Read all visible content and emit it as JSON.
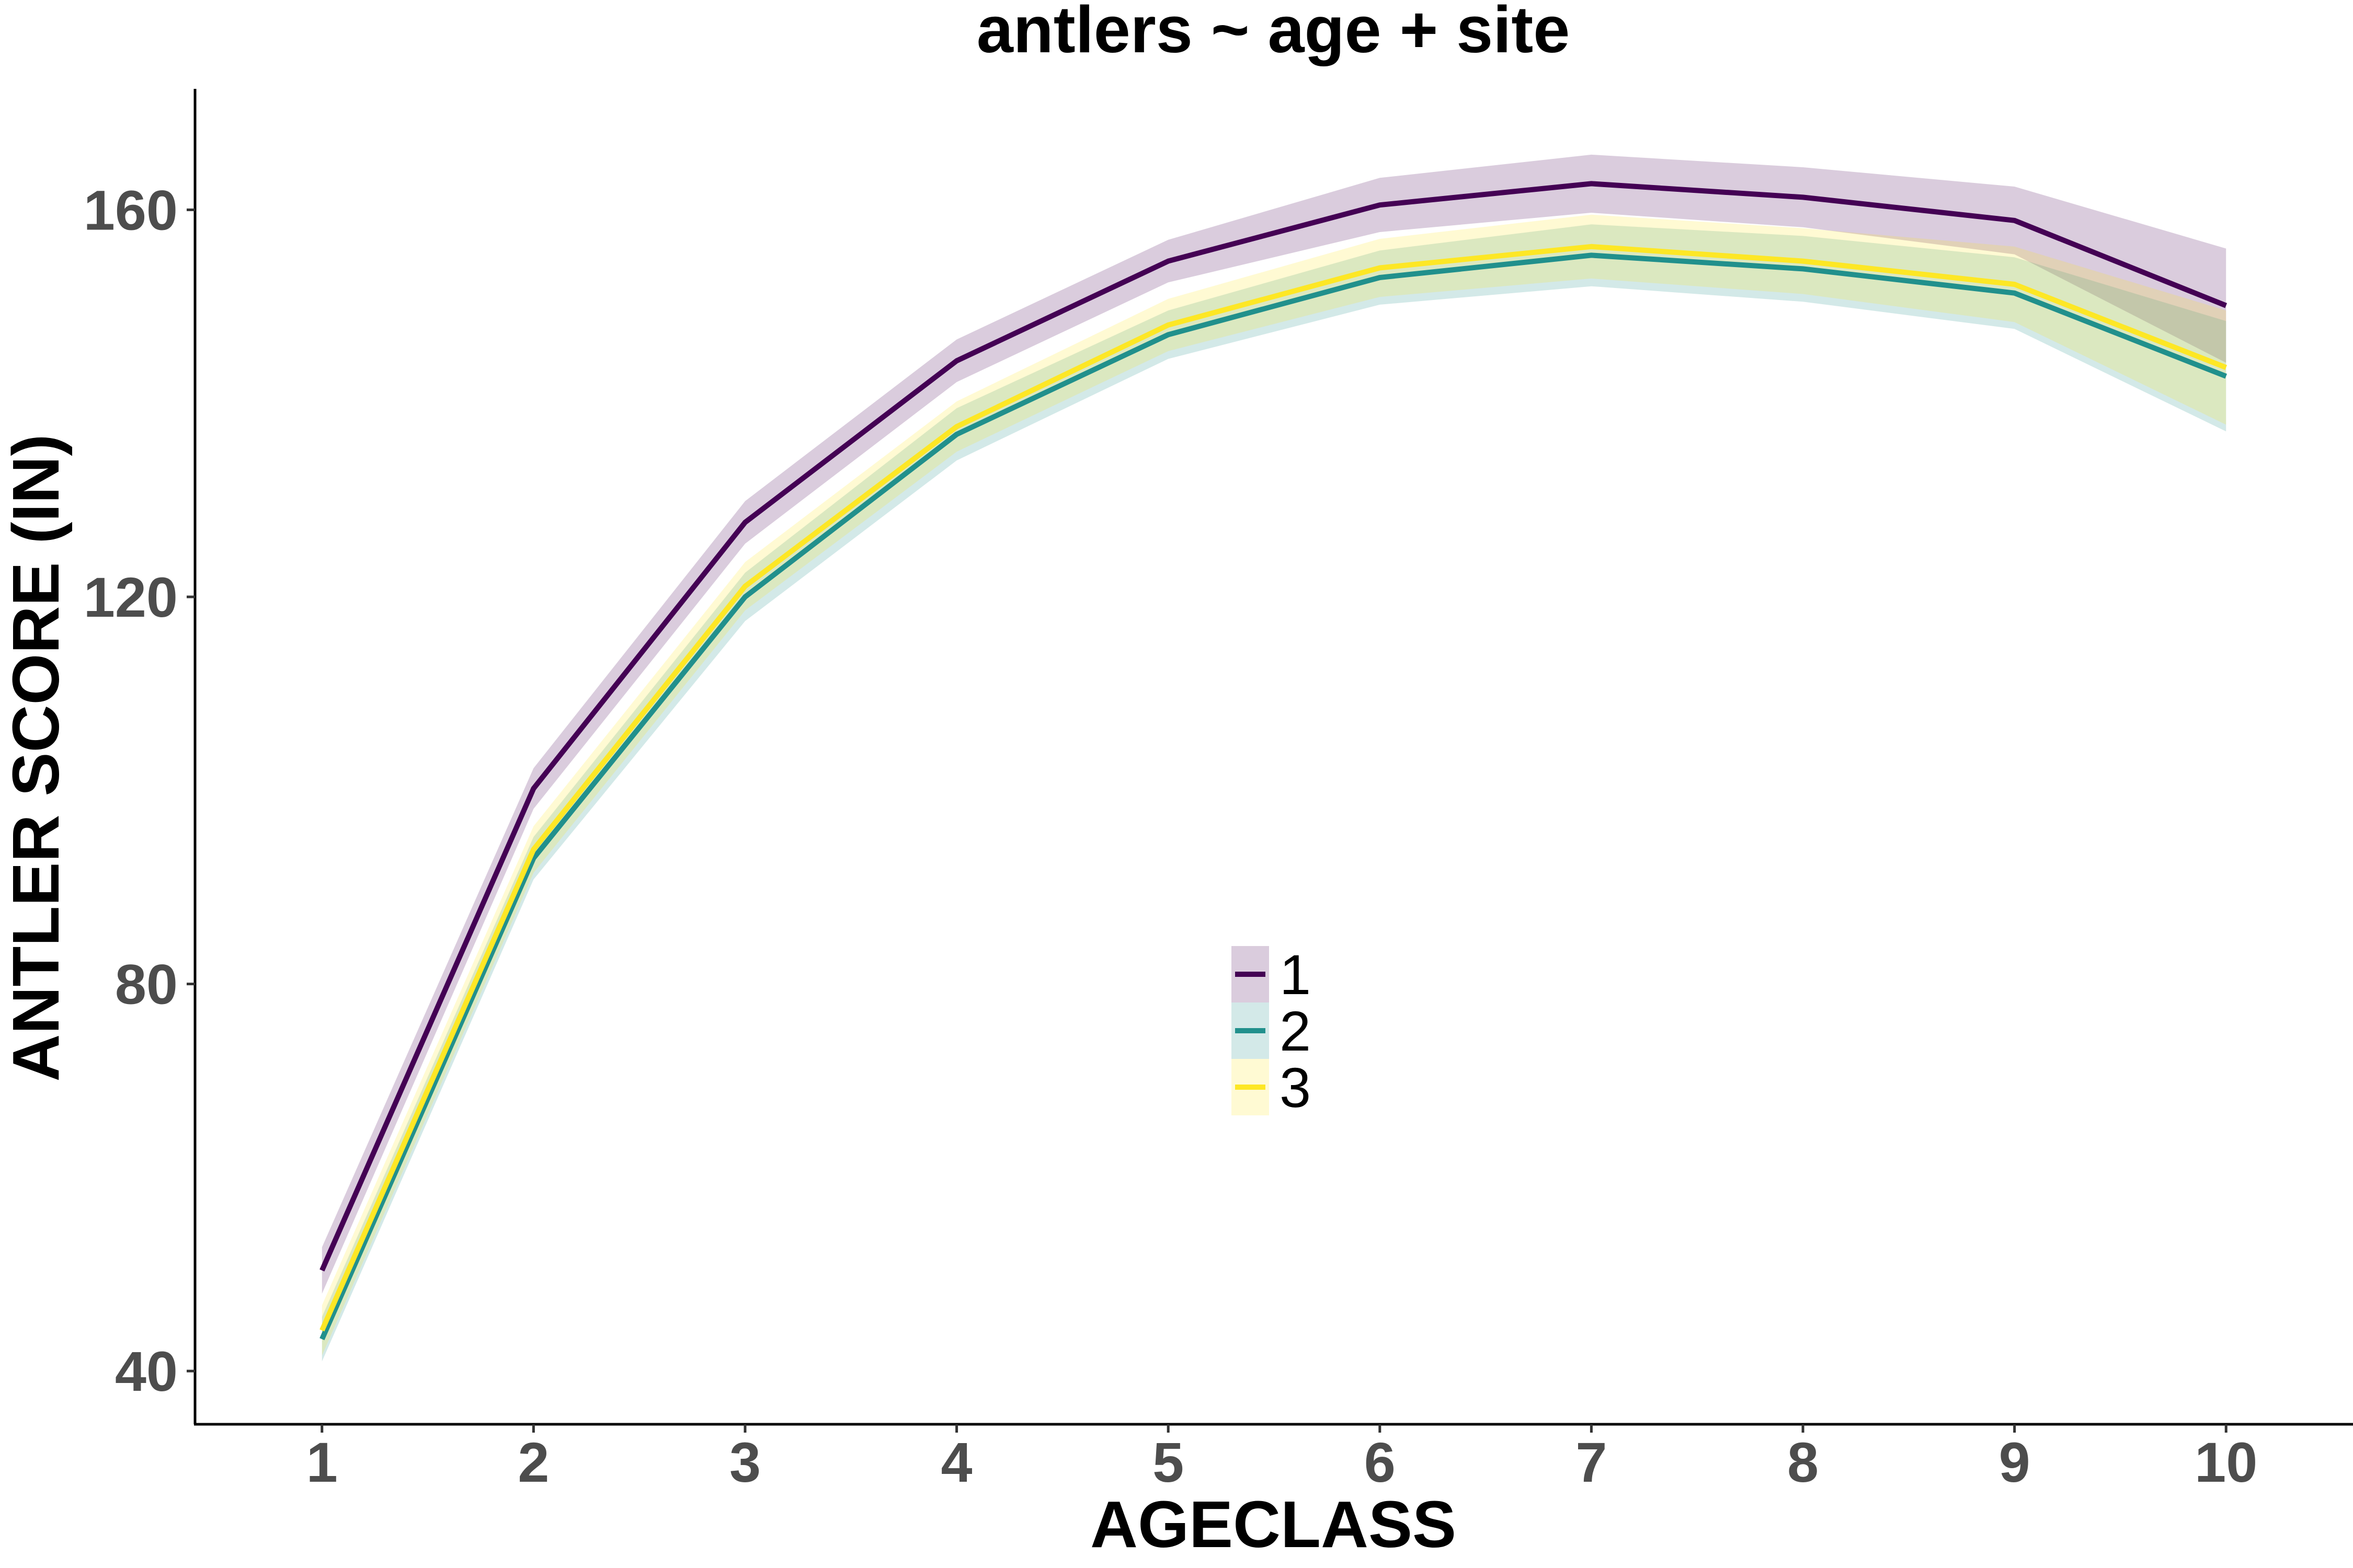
{
  "chart_data": {
    "type": "line",
    "title": "antlers ~ age + site",
    "xlabel": "AGECLASS",
    "ylabel": "ANTLER SCORE (IN)",
    "x": [
      1,
      2,
      3,
      4,
      5,
      6,
      7,
      8,
      9,
      10
    ],
    "x_tick_labels": [
      "1",
      "2",
      "3",
      "4",
      "5",
      "6",
      "7",
      "8",
      "9",
      "10"
    ],
    "y_ticks": [
      40,
      80,
      120,
      160
    ],
    "y_tick_labels": [
      "40",
      "80",
      "120",
      "160"
    ],
    "xlim": [
      0.4,
      10.6
    ],
    "ylim": [
      34.5,
      172.5
    ],
    "grid": false,
    "legend": {
      "position": "center",
      "title": ""
    },
    "series": [
      {
        "name": "1",
        "color": "#440154",
        "fill": "#d9c7dd",
        "values": [
          50.4,
          100.2,
          127.7,
          144.4,
          154.7,
          160.5,
          162.7,
          161.3,
          158.9,
          150.1
        ],
        "lower": [
          48.0,
          98.1,
          125.5,
          142.2,
          152.5,
          157.7,
          159.7,
          158.2,
          155.4,
          144.2
        ],
        "upper": [
          52.8,
          102.3,
          129.9,
          146.6,
          156.9,
          163.3,
          165.7,
          164.4,
          162.4,
          156.0
        ]
      },
      {
        "name": "2",
        "color": "#21908c",
        "fill": "#c8e4e3",
        "values": [
          43.3,
          93.0,
          120.0,
          136.8,
          147.1,
          153.0,
          155.3,
          153.9,
          151.4,
          142.8
        ],
        "lower": [
          41.0,
          90.8,
          117.5,
          134.1,
          144.6,
          150.2,
          152.1,
          150.5,
          147.7,
          137.1
        ],
        "upper": [
          45.6,
          95.2,
          122.5,
          139.5,
          149.6,
          155.8,
          158.5,
          157.3,
          155.1,
          148.5
        ]
      },
      {
        "name": "3",
        "color": "#fde725",
        "fill": "#fef8c9",
        "values": [
          44.2,
          93.9,
          121.1,
          137.6,
          148.1,
          154.0,
          156.2,
          154.7,
          152.3,
          143.7
        ],
        "lower": [
          41.6,
          91.5,
          118.6,
          135.0,
          145.4,
          151.0,
          152.9,
          151.3,
          148.4,
          137.8
        ],
        "upper": [
          46.8,
          96.3,
          123.6,
          140.2,
          150.8,
          157.0,
          159.5,
          158.1,
          156.2,
          149.6
        ]
      }
    ]
  }
}
